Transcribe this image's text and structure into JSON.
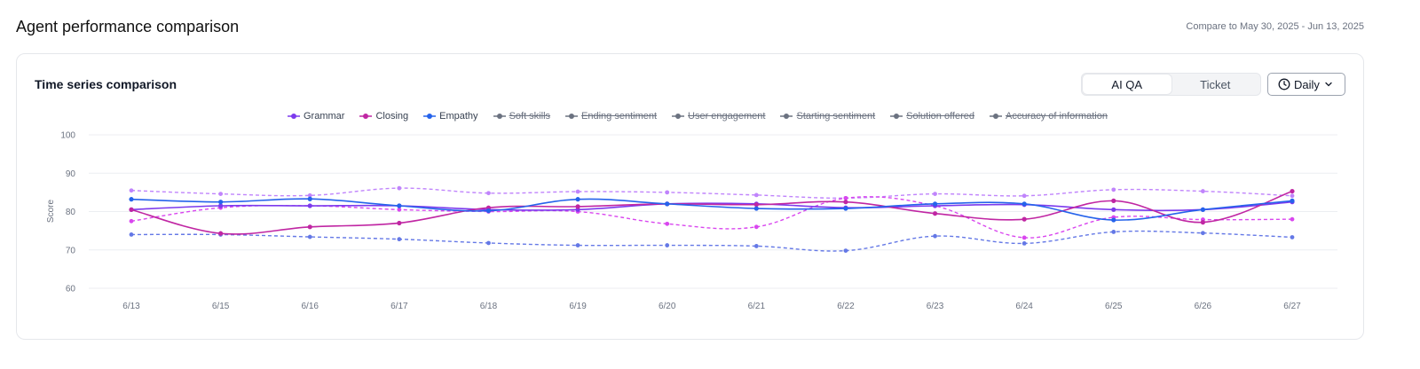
{
  "header": {
    "title": "Agent performance comparison",
    "compare_text": "Compare to May 30, 2025 - Jun 13, 2025"
  },
  "card": {
    "title": "Time series comparison",
    "toggle": {
      "options": [
        "AI QA",
        "Ticket"
      ],
      "selected": "AI QA"
    },
    "period": {
      "label": "Daily",
      "icon": "clock-icon",
      "chevron": "chevron-down-icon"
    }
  },
  "legend": [
    {
      "name": "Grammar",
      "color": "#7c3aed",
      "active": true
    },
    {
      "name": "Closing",
      "color": "#c026a3",
      "active": true
    },
    {
      "name": "Empathy",
      "color": "#2563eb",
      "active": true
    },
    {
      "name": "Soft skills",
      "color": "#6b7280",
      "active": false
    },
    {
      "name": "Ending sentiment",
      "color": "#6b7280",
      "active": false
    },
    {
      "name": "User engagement",
      "color": "#6b7280",
      "active": false
    },
    {
      "name": "Starting sentiment",
      "color": "#6b7280",
      "active": false
    },
    {
      "name": "Solution offered",
      "color": "#6b7280",
      "active": false
    },
    {
      "name": "Accuracy of information",
      "color": "#6b7280",
      "active": false
    }
  ],
  "chart_data": {
    "type": "line",
    "ylabel": "Score",
    "ylim": [
      60,
      100
    ],
    "yticks": [
      100,
      90,
      80,
      70,
      60
    ],
    "grid": true,
    "legend_position": "top",
    "categories": [
      "6/13",
      "6/15",
      "6/16",
      "6/17",
      "6/18",
      "6/19",
      "6/20",
      "6/21",
      "6/22",
      "6/23",
      "6/24",
      "6/25",
      "6/26",
      "6/27"
    ],
    "series": [
      {
        "name": "Grammar",
        "color": "#7c3aed",
        "values": [
          80.5,
          81.5,
          81.5,
          81.5,
          80.5,
          80.5,
          82,
          82,
          81,
          81.5,
          81.8,
          80.5,
          80.5,
          82.5
        ]
      },
      {
        "name": "Closing",
        "color": "#c026a3",
        "values": [
          80.5,
          74.3,
          76,
          77,
          81,
          81.3,
          82,
          81.8,
          82.5,
          79.5,
          78,
          82.8,
          77.2,
          85.3
        ]
      },
      {
        "name": "Empathy",
        "color": "#2563eb",
        "values": [
          83.2,
          82.5,
          83.3,
          81.5,
          80.2,
          83.2,
          82,
          80.8,
          80.8,
          82,
          82,
          77.8,
          80.5,
          82.8
        ]
      },
      {
        "name": "Grammar (comparison)",
        "color": "#c084fc",
        "dashed": true,
        "values": [
          85.5,
          84.6,
          84.2,
          86.1,
          84.8,
          85.2,
          85,
          84.3,
          83.5,
          84.6,
          84.1,
          85.7,
          85.3,
          84.1
        ]
      },
      {
        "name": "Closing (comparison)",
        "color": "#d946ef",
        "dashed": true,
        "values": [
          77.5,
          81,
          81.5,
          80.5,
          80,
          80,
          76.8,
          76,
          83.5,
          81.5,
          73.2,
          78.5,
          77.9,
          78
        ]
      },
      {
        "name": "Empathy (comparison)",
        "color": "#6478e6",
        "dashed": true,
        "values": [
          74,
          74,
          73.4,
          72.8,
          71.8,
          71.2,
          71.2,
          71,
          69.8,
          73.6,
          71.7,
          74.7,
          74.4,
          73.3
        ]
      }
    ]
  }
}
